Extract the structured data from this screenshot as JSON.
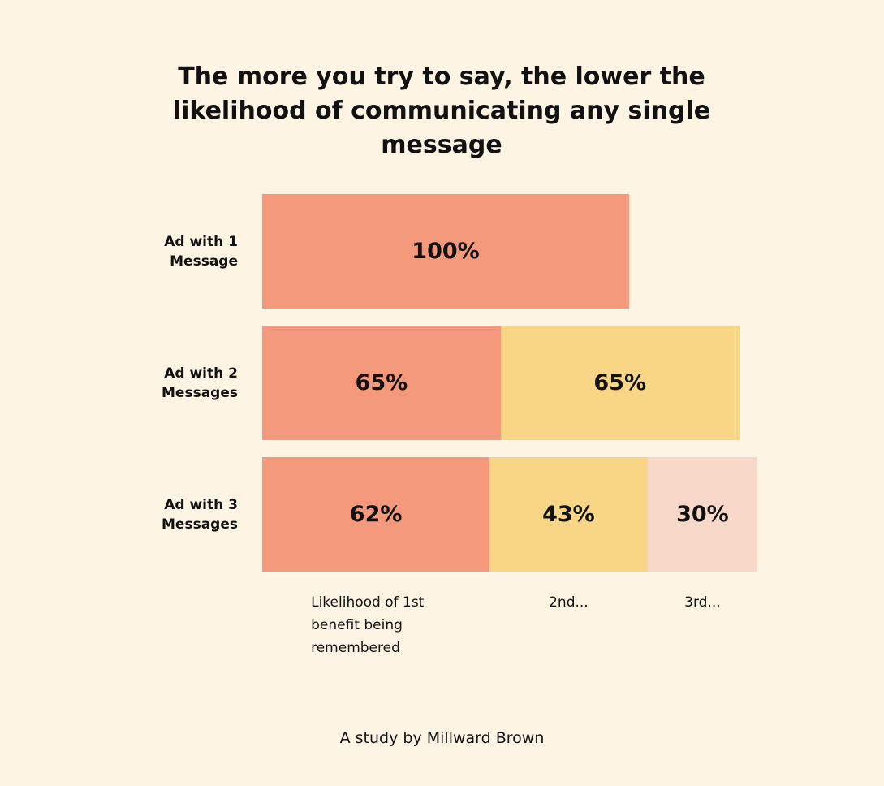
{
  "chart_data": {
    "type": "bar",
    "orientation": "horizontal",
    "stacked": true,
    "title": "The more you try to say, the lower the likelihood of communicating any single message",
    "categories": [
      "Ad with 1 Message",
      "Ad with 2 Messages",
      "Ad with 3 Messages"
    ],
    "series": [
      {
        "name": "Likelihood of 1st benefit being remembered",
        "color": "#f4997b",
        "values": [
          100,
          65,
          62
        ],
        "value_labels": [
          "100%",
          "65%",
          "62%"
        ]
      },
      {
        "name": "2nd...",
        "color": "#f8d685",
        "values": [
          null,
          65,
          43
        ],
        "value_labels": [
          null,
          "65%",
          "43%"
        ]
      },
      {
        "name": "3rd...",
        "color": "#f8d8c8",
        "values": [
          null,
          null,
          30
        ],
        "value_labels": [
          null,
          null,
          "30%"
        ]
      }
    ],
    "source": "A study by Millward Brown"
  }
}
